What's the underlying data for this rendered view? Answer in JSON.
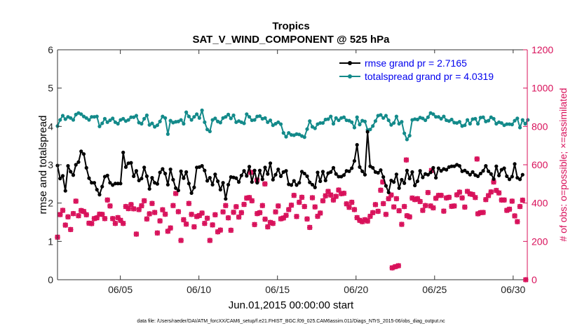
{
  "chart_data": {
    "type": "line",
    "title": "Tropics",
    "subtitle": "SAT_V_WIND_COMPONENT @ 525 hPa",
    "xlabel": "Jun.01,2015 00:00:00 start",
    "ylabel": "rmse and totalspread",
    "y2label": "# of obs: o=possible; ×=assimilated",
    "footnote": "data file: /Users/raeder/DAI/ATM_forcXX/CAM6_setup/f.e21.FHIST_BGC.f09_025.CAM6assim.011/Diags_NTrS_2015-06/obs_diag_output.nc",
    "xlim": [
      1.0,
      30.9
    ],
    "ylim": [
      0,
      6
    ],
    "y2lim": [
      0,
      1200
    ],
    "x_ticks": [
      5,
      10,
      15,
      20,
      25,
      30
    ],
    "x_tick_labels": [
      "06/05",
      "06/10",
      "06/15",
      "06/20",
      "06/25",
      "06/30"
    ],
    "y_ticks": [
      0,
      1,
      2,
      3,
      4,
      5,
      6
    ],
    "y_tick_labels": [
      "0",
      "1",
      "2",
      "3",
      "4",
      "5",
      "6"
    ],
    "y2_ticks": [
      0,
      200,
      400,
      600,
      800,
      1000,
      1200
    ],
    "y2_tick_labels": [
      "0",
      "200",
      "400",
      "600",
      "800",
      "1000",
      "1200"
    ],
    "legend_position": "top-right",
    "colors": {
      "rmse": "#000000",
      "spread": "#138a8a",
      "obs": "#d8105a",
      "legend_text": "#0000ee",
      "axis": "#333333",
      "y2axis": "#d8105a"
    },
    "series": [
      {
        "name": "rmse grand pr = 2.7165",
        "axis": "left",
        "values": [
          2.98,
          2.64,
          2.71,
          2.32,
          2.97,
          2.82,
          2.73,
          3.0,
          3.07,
          3.35,
          3.28,
          2.92,
          2.65,
          2.53,
          2.53,
          2.35,
          2.22,
          2.43,
          2.69,
          2.72,
          2.53,
          2.47,
          2.51,
          2.51,
          2.51,
          3.32,
          2.94,
          3.04,
          3.05,
          2.7,
          2.84,
          2.59,
          2.64,
          2.93,
          2.7,
          2.37,
          2.66,
          2.53,
          2.5,
          2.8,
          2.89,
          2.77,
          2.48,
          2.88,
          2.61,
          2.39,
          2.33,
          2.83,
          2.65,
          2.81,
          2.51,
          2.26,
          2.41,
          2.93,
          2.94,
          2.97,
          2.85,
          2.58,
          2.66,
          2.48,
          2.75,
          2.57,
          2.35,
          2.53,
          2.11,
          2.48,
          2.68,
          2.67,
          2.65,
          2.55,
          2.72,
          2.84,
          2.71,
          2.95,
          2.55,
          2.85,
          2.53,
          2.85,
          2.62,
          2.93,
          2.76,
          3.04,
          2.61,
          2.74,
          2.88,
          2.7,
          2.81,
          2.84,
          2.49,
          2.47,
          2.58,
          2.47,
          2.53,
          2.82,
          2.77,
          2.7,
          2.54,
          2.48,
          2.41,
          2.8,
          2.57,
          2.82,
          2.59,
          2.78,
          2.81,
          2.92,
          2.76,
          2.69,
          2.69,
          2.73,
          2.84,
          2.83,
          2.91,
          3.1,
          3.52,
          2.94,
          2.83,
          2.74,
          3.86,
          2.96,
          2.92,
          2.81,
          2.79,
          2.86,
          2.68,
          2.45,
          2.28,
          2.59,
          2.55,
          2.75,
          2.39,
          2.61,
          2.52,
          2.85,
          2.64,
          2.81,
          2.46,
          2.57,
          2.84,
          2.67,
          2.76,
          2.74,
          2.8,
          2.92,
          2.66,
          2.91,
          2.84,
          2.89,
          2.87,
          2.94,
          2.96,
          2.96,
          3.0,
          2.97,
          2.83,
          2.85,
          2.8,
          2.74,
          2.81,
          2.73,
          2.7,
          2.77,
          2.84,
          2.97,
          2.83,
          2.76,
          2.63,
          2.96,
          2.72,
          2.87,
          2.91,
          2.7,
          2.62,
          2.69,
          3.02,
          2.66,
          2.62,
          2.74
        ]
      },
      {
        "name": "totalspread grand pr = 4.0319",
        "axis": "left",
        "values": [
          4.01,
          4.17,
          4.28,
          4.19,
          4.25,
          4.22,
          4.17,
          4.31,
          4.35,
          4.32,
          4.26,
          4.22,
          4.17,
          4.25,
          4.25,
          4.26,
          4.0,
          4.08,
          4.2,
          4.11,
          4.16,
          4.21,
          4.11,
          4.07,
          4.17,
          4.2,
          4.14,
          4.17,
          4.24,
          4.24,
          4.28,
          4.1,
          4.07,
          4.2,
          4.29,
          4.04,
          4.08,
          3.99,
          4.03,
          4.13,
          4.26,
          4.22,
          3.8,
          4.15,
          4.1,
          4.12,
          4.13,
          4.17,
          4.07,
          4.37,
          4.26,
          4.17,
          4.25,
          4.32,
          4.22,
          4.42,
          4.11,
          3.92,
          3.87,
          4.17,
          4.21,
          4.13,
          4.1,
          4.22,
          4.25,
          4.31,
          4.21,
          4.29,
          4.11,
          4.14,
          4.11,
          4.08,
          4.32,
          4.25,
          4.16,
          4.17,
          4.26,
          4.27,
          4.2,
          4.22,
          4.11,
          4.16,
          4.03,
          4.07,
          4.11,
          4.06,
          3.83,
          3.73,
          3.83,
          3.78,
          3.77,
          3.8,
          3.79,
          3.75,
          3.72,
          3.93,
          4.14,
          3.99,
          3.95,
          4.06,
          4.09,
          4.09,
          4.18,
          4.19,
          4.26,
          4.07,
          4.22,
          4.16,
          4.22,
          4.24,
          4.16,
          4.15,
          4.11,
          3.97,
          4.24,
          4.05,
          4.15,
          4.13,
          3.91,
          3.92,
          4.01,
          4.14,
          4.28,
          4.3,
          4.22,
          4.28,
          4.16,
          4.04,
          4.09,
          4.26,
          4.07,
          4.12,
          3.82,
          3.66,
          3.76,
          4.17,
          4.19,
          4.18,
          4.23,
          4.21,
          4.16,
          4.24,
          4.35,
          4.32,
          4.25,
          4.25,
          4.2,
          4.26,
          4.16,
          4.14,
          4.18,
          4.1,
          4.09,
          4.12,
          4.01,
          4.03,
          4.17,
          4.07,
          4.19,
          4.2,
          4.07,
          4.23,
          4.24,
          4.13,
          4.15,
          4.24,
          4.2,
          4.07,
          4.11,
          4.09,
          4.03,
          4.06,
          4.06,
          4.05,
          4.15,
          4.21,
          3.97,
          4.17,
          4.07,
          4.17
        ]
      },
      {
        "name": "possible obs",
        "axis": "right",
        "marker": "circle",
        "values": [
          222,
          340,
          362,
          285,
          328,
          262,
          345,
          410,
          334,
          361,
          356,
          339,
          295,
          293,
          319,
          323,
          342,
          341,
          319,
          416,
          385,
          319,
          294,
          324,
          310,
          294,
          382,
          371,
          392,
          370,
          238,
          366,
          386,
          412,
          317,
          344,
          398,
          351,
          244,
          307,
          365,
          342,
          253,
          270,
          387,
          450,
          355,
          205,
          313,
          290,
          398,
          341,
          276,
          330,
          335,
          348,
          294,
          321,
          205,
          286,
          339,
          250,
          259,
          354,
          387,
          323,
          258,
          352,
          381,
          327,
          350,
          393,
          426,
          429,
          412,
          288,
          345,
          350,
          387,
          316,
          276,
          299,
          294,
          354,
          385,
          318,
          322,
          336,
          366,
          389,
          440,
          330,
          404,
          430,
          382,
          317,
          273,
          428,
          380,
          331,
          348,
          412,
          438,
          461,
          442,
          416,
          435,
          468,
          449,
          451,
          396,
          378,
          404,
          366,
          324,
          310,
          303,
          313,
          306,
          331,
          350,
          392,
          357,
          467,
          397,
          341,
          423,
          442,
          380,
          423,
          360,
          289,
          382,
          334,
          328,
          426,
          418,
          423,
          408,
          362,
          387,
          455,
          385,
          375,
          425,
          440,
          440,
          358,
          427,
          430,
          383,
          385,
          443,
          457,
          427,
          379,
          461,
          448,
          445,
          429,
          344,
          350,
          351,
          418,
          439,
          458,
          510,
          466,
          453,
          416,
          416,
          362,
          368,
          410,
          333,
          303,
          382,
          415,
          377,
          359
        ]
      },
      {
        "name": "assimilated obs",
        "axis": "right",
        "marker": "x",
        "values": [
          222,
          340,
          362,
          285,
          328,
          262,
          345,
          410,
          334,
          361,
          356,
          339,
          295,
          293,
          319,
          323,
          342,
          341,
          319,
          416,
          385,
          319,
          294,
          324,
          310,
          294,
          382,
          371,
          392,
          370,
          238,
          366,
          386,
          412,
          317,
          344,
          398,
          351,
          244,
          307,
          365,
          342,
          253,
          270,
          387,
          450,
          355,
          205,
          313,
          290,
          398,
          341,
          276,
          330,
          335,
          348,
          294,
          321,
          205,
          286,
          339,
          250,
          259,
          354,
          387,
          323,
          258,
          352,
          381,
          327,
          350,
          393,
          426,
          429,
          412,
          288,
          345,
          350,
          387,
          316,
          276,
          299,
          294,
          354,
          385,
          318,
          322,
          336,
          366,
          389,
          440,
          330,
          404,
          430,
          382,
          317,
          273,
          428,
          380,
          331,
          348,
          412,
          438,
          461,
          442,
          416,
          435,
          468,
          449,
          451,
          396,
          378,
          404,
          366,
          324,
          310,
          303,
          313,
          306,
          331,
          350,
          392,
          357,
          467,
          397,
          341,
          423,
          442,
          380,
          423,
          360,
          289,
          382,
          334,
          328,
          426,
          418,
          423,
          408,
          362,
          387,
          455,
          385,
          375,
          425,
          440,
          440,
          358,
          427,
          430,
          383,
          385,
          443,
          457,
          427,
          379,
          461,
          448,
          445,
          429,
          344,
          350,
          351,
          418,
          439,
          458,
          510,
          466,
          453,
          416,
          416,
          362,
          368,
          410,
          333,
          303,
          382,
          415,
          377,
          359
        ]
      },
      {
        "name": "extra obs points",
        "axis": "right",
        "marker": "x",
        "points": [
          [
            13.3,
            560
          ],
          [
            13.7,
            520
          ],
          [
            14.2,
            500
          ],
          [
            21.7,
            510
          ],
          [
            22.3,
            62
          ],
          [
            22.5,
            68
          ],
          [
            22.7,
            73
          ],
          [
            23.2,
            625
          ],
          [
            24.8,
            570
          ],
          [
            27.7,
            630
          ],
          [
            30.8,
            0
          ]
        ]
      }
    ]
  }
}
